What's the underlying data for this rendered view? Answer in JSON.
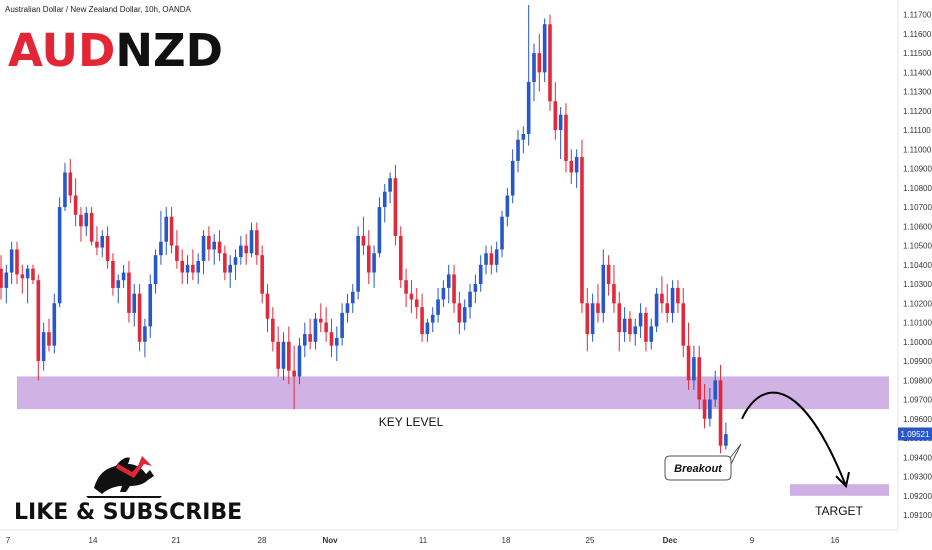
{
  "header": {
    "symbol_line": "Australian Dollar / New Zealand Dollar, 10h, OANDA",
    "pair_part1": "AUD",
    "pair_part2": "NZD"
  },
  "colors": {
    "up": "#2757c8",
    "down": "#e0293b",
    "zone": "#cfaee3",
    "pair_red": "#e32636",
    "pair_black": "#111111"
  },
  "chart_data": {
    "type": "candlestick",
    "title": "Australian Dollar / New Zealand Dollar, 10h, OANDA",
    "x_ticks": [
      "7",
      "14",
      "21",
      "28",
      "Nov",
      "11",
      "18",
      "25",
      "Dec",
      "9",
      "16"
    ],
    "y_ticks": [
      "1.11700",
      "1.11600",
      "1.11500",
      "1.11400",
      "1.11300",
      "1.11200",
      "1.11100",
      "1.11000",
      "1.10900",
      "1.10800",
      "1.10700",
      "1.10600",
      "1.10500",
      "1.10400",
      "1.10300",
      "1.10200",
      "1.10100",
      "1.10000",
      "1.09900",
      "1.09800",
      "1.09700",
      "1.09600",
      "1.09500",
      "1.09400",
      "1.09300",
      "1.09200",
      "1.09100"
    ],
    "ylim": [
      1.091,
      1.1175
    ],
    "last_price": "1.09521",
    "key_level": {
      "label": "KEY LEVEL",
      "low": 1.0965,
      "high": 1.0982
    },
    "target": {
      "label": "TARGET",
      "low": 1.092,
      "high": 1.0926
    },
    "breakout_label": "Breakout",
    "candles": [
      [
        1.1038,
        1.1045,
        1.1022,
        1.1028
      ],
      [
        1.1028,
        1.104,
        1.102,
        1.1036
      ],
      [
        1.1036,
        1.1052,
        1.103,
        1.1048
      ],
      [
        1.1048,
        1.1052,
        1.103,
        1.1035
      ],
      [
        1.1035,
        1.104,
        1.1025,
        1.1033
      ],
      [
        1.1033,
        1.104,
        1.102,
        1.1038
      ],
      [
        1.1038,
        1.104,
        1.103,
        1.1032
      ],
      [
        1.1032,
        1.1035,
        1.098,
        1.099
      ],
      [
        1.099,
        1.101,
        1.0985,
        1.1005
      ],
      [
        1.1005,
        1.1012,
        1.0995,
        1.0998
      ],
      [
        1.0998,
        1.1025,
        1.0994,
        1.102
      ],
      [
        1.102,
        1.1075,
        1.1018,
        1.107
      ],
      [
        1.107,
        1.1093,
        1.1068,
        1.1088
      ],
      [
        1.1088,
        1.1095,
        1.1072,
        1.1076
      ],
      [
        1.1076,
        1.1085,
        1.106,
        1.1066
      ],
      [
        1.1066,
        1.107,
        1.1052,
        1.106
      ],
      [
        1.106,
        1.107,
        1.1055,
        1.1067
      ],
      [
        1.1067,
        1.107,
        1.105,
        1.1052
      ],
      [
        1.1052,
        1.106,
        1.1045,
        1.1049
      ],
      [
        1.1049,
        1.1058,
        1.1044,
        1.1055
      ],
      [
        1.1055,
        1.106,
        1.1038,
        1.1042
      ],
      [
        1.1042,
        1.1046,
        1.1024,
        1.1028
      ],
      [
        1.1028,
        1.1035,
        1.102,
        1.1032
      ],
      [
        1.1032,
        1.104,
        1.1028,
        1.1036
      ],
      [
        1.1036,
        1.1042,
        1.101,
        1.1015
      ],
      [
        1.1015,
        1.103,
        1.1008,
        1.1025
      ],
      [
        1.1025,
        1.103,
        1.0995,
        1.1
      ],
      [
        1.1,
        1.1012,
        1.0992,
        1.1008
      ],
      [
        1.1008,
        1.1035,
        1.1002,
        1.103
      ],
      [
        1.103,
        1.1048,
        1.1025,
        1.1045
      ],
      [
        1.1045,
        1.1068,
        1.104,
        1.1052
      ],
      [
        1.1052,
        1.107,
        1.1045,
        1.1065
      ],
      [
        1.1065,
        1.107,
        1.1046,
        1.105
      ],
      [
        1.105,
        1.1058,
        1.1038,
        1.1042
      ],
      [
        1.1042,
        1.1048,
        1.103,
        1.1036
      ],
      [
        1.1036,
        1.1045,
        1.103,
        1.104
      ],
      [
        1.104,
        1.1048,
        1.1032,
        1.1036
      ],
      [
        1.1036,
        1.1046,
        1.103,
        1.1042
      ],
      [
        1.1042,
        1.1058,
        1.1035,
        1.1055
      ],
      [
        1.1055,
        1.106,
        1.1042,
        1.1048
      ],
      [
        1.1048,
        1.1056,
        1.104,
        1.1052
      ],
      [
        1.1052,
        1.1058,
        1.1042,
        1.1046
      ],
      [
        1.1046,
        1.105,
        1.1032,
        1.1036
      ],
      [
        1.1036,
        1.1045,
        1.1028,
        1.104
      ],
      [
        1.104,
        1.1048,
        1.1032,
        1.1044
      ],
      [
        1.1044,
        1.1055,
        1.104,
        1.105
      ],
      [
        1.105,
        1.1056,
        1.104,
        1.1046
      ],
      [
        1.1046,
        1.1062,
        1.1044,
        1.1058
      ],
      [
        1.1058,
        1.1062,
        1.104,
        1.1045
      ],
      [
        1.1045,
        1.105,
        1.102,
        1.1025
      ],
      [
        1.1025,
        1.103,
        1.1005,
        1.1012
      ],
      [
        1.1012,
        1.1018,
        1.0995,
        1.1
      ],
      [
        1.1,
        1.1008,
        1.0982,
        1.0986
      ],
      [
        1.0986,
        1.1005,
        1.098,
        1.1
      ],
      [
        1.1,
        1.1008,
        1.0978,
        1.0985
      ],
      [
        1.0985,
        1.0998,
        1.0965,
        1.0982
      ],
      [
        1.0982,
        1.1002,
        1.0978,
        1.0998
      ],
      [
        1.0998,
        1.101,
        1.0992,
        1.1004
      ],
      [
        1.1004,
        1.1012,
        1.0996,
        1.1
      ],
      [
        1.1,
        1.1015,
        1.0996,
        1.1012
      ],
      [
        1.1012,
        1.102,
        1.1005,
        1.101
      ],
      [
        1.101,
        1.1018,
        1.1,
        1.1005
      ],
      [
        1.1005,
        1.1012,
        1.0992,
        1.0998
      ],
      [
        1.0998,
        1.1008,
        1.099,
        1.1002
      ],
      [
        1.1002,
        1.102,
        1.0998,
        1.1015
      ],
      [
        1.1015,
        1.1025,
        1.101,
        1.102
      ],
      [
        1.102,
        1.103,
        1.1015,
        1.1026
      ],
      [
        1.1026,
        1.106,
        1.1022,
        1.1055
      ],
      [
        1.1055,
        1.1065,
        1.1045,
        1.105
      ],
      [
        1.105,
        1.1058,
        1.103,
        1.1036
      ],
      [
        1.1036,
        1.105,
        1.1028,
        1.1046
      ],
      [
        1.1046,
        1.1075,
        1.1044,
        1.107
      ],
      [
        1.107,
        1.1082,
        1.1062,
        1.1078
      ],
      [
        1.1078,
        1.1088,
        1.1072,
        1.1085
      ],
      [
        1.1085,
        1.1092,
        1.105,
        1.1055
      ],
      [
        1.1055,
        1.106,
        1.1028,
        1.1032
      ],
      [
        1.1032,
        1.1038,
        1.1018,
        1.1025
      ],
      [
        1.1025,
        1.1032,
        1.1015,
        1.1022
      ],
      [
        1.1022,
        1.1028,
        1.1012,
        1.1018
      ],
      [
        1.1018,
        1.1025,
        1.1,
        1.1004
      ],
      [
        1.1004,
        1.1012,
        1.1,
        1.101
      ],
      [
        1.101,
        1.1018,
        1.1005,
        1.1014
      ],
      [
        1.1014,
        1.1028,
        1.101,
        1.1022
      ],
      [
        1.1022,
        1.1032,
        1.1018,
        1.1028
      ],
      [
        1.1028,
        1.104,
        1.102,
        1.1035
      ],
      [
        1.1035,
        1.104,
        1.1015,
        1.102
      ],
      [
        1.102,
        1.1026,
        1.1004,
        1.101
      ],
      [
        1.101,
        1.1022,
        1.1006,
        1.1018
      ],
      [
        1.1018,
        1.103,
        1.1012,
        1.1026
      ],
      [
        1.1026,
        1.1035,
        1.102,
        1.103
      ],
      [
        1.103,
        1.1045,
        1.1026,
        1.104
      ],
      [
        1.104,
        1.105,
        1.1035,
        1.1046
      ],
      [
        1.1046,
        1.105,
        1.1035,
        1.104
      ],
      [
        1.104,
        1.1052,
        1.1036,
        1.1048
      ],
      [
        1.1048,
        1.1068,
        1.1044,
        1.1065
      ],
      [
        1.1065,
        1.108,
        1.106,
        1.1076
      ],
      [
        1.1076,
        1.11,
        1.1072,
        1.1094
      ],
      [
        1.1094,
        1.111,
        1.1088,
        1.1105
      ],
      [
        1.1105,
        1.1112,
        1.1098,
        1.1108
      ],
      [
        1.1108,
        1.1175,
        1.1102,
        1.1135
      ],
      [
        1.1135,
        1.1155,
        1.1125,
        1.115
      ],
      [
        1.115,
        1.116,
        1.113,
        1.114
      ],
      [
        1.114,
        1.1168,
        1.1135,
        1.1165
      ],
      [
        1.1165,
        1.117,
        1.112,
        1.1125
      ],
      [
        1.1125,
        1.1135,
        1.1105,
        1.111
      ],
      [
        1.111,
        1.1122,
        1.1095,
        1.1118
      ],
      [
        1.1118,
        1.1124,
        1.1088,
        1.1094
      ],
      [
        1.1094,
        1.11,
        1.1082,
        1.1088
      ],
      [
        1.1088,
        1.11,
        1.108,
        1.1096
      ],
      [
        1.1096,
        1.1105,
        1.1015,
        1.102
      ],
      [
        1.102,
        1.1028,
        1.0995,
        1.1004
      ],
      [
        1.1004,
        1.1025,
        1.1,
        1.102
      ],
      [
        1.102,
        1.103,
        1.101,
        1.1015
      ],
      [
        1.1015,
        1.1048,
        1.101,
        1.104
      ],
      [
        1.104,
        1.1045,
        1.1024,
        1.103
      ],
      [
        1.103,
        1.104,
        1.1015,
        1.102
      ],
      [
        1.102,
        1.1026,
        1.0995,
        1.1005
      ],
      [
        1.1005,
        1.1018,
        1.1,
        1.1012
      ],
      [
        1.1012,
        1.1016,
        1.1,
        1.1004
      ],
      [
        1.1004,
        1.1012,
        1.0998,
        1.1008
      ],
      [
        1.1008,
        1.102,
        1.1002,
        1.1015
      ],
      [
        1.1015,
        1.1018,
        1.0995,
        1.1
      ],
      [
        1.1,
        1.1012,
        1.0996,
        1.1008
      ],
      [
        1.1008,
        1.1028,
        1.1005,
        1.1025
      ],
      [
        1.1025,
        1.1034,
        1.1015,
        1.102
      ],
      [
        1.102,
        1.103,
        1.101,
        1.1015
      ],
      [
        1.1015,
        1.1032,
        1.101,
        1.1028
      ],
      [
        1.1028,
        1.1032,
        1.1015,
        1.102
      ],
      [
        1.102,
        1.1028,
        1.0992,
        1.0998
      ],
      [
        1.0998,
        1.101,
        1.0975,
        1.098
      ],
      [
        1.098,
        1.0998,
        1.0975,
        1.0992
      ],
      [
        1.0992,
        1.0998,
        1.0965,
        1.097
      ],
      [
        1.097,
        1.0978,
        1.0955,
        1.096
      ],
      [
        1.096,
        1.0976,
        1.0956,
        1.097
      ],
      [
        1.097,
        1.0985,
        1.0966,
        1.098
      ],
      [
        1.098,
        1.0988,
        1.0942,
        1.0946
      ],
      [
        1.0946,
        1.0958,
        1.0944,
        1.0952
      ]
    ]
  },
  "annotations": {
    "cta": "LIKE & SUBSCRIBE",
    "logo": "bull-bear-logo"
  }
}
